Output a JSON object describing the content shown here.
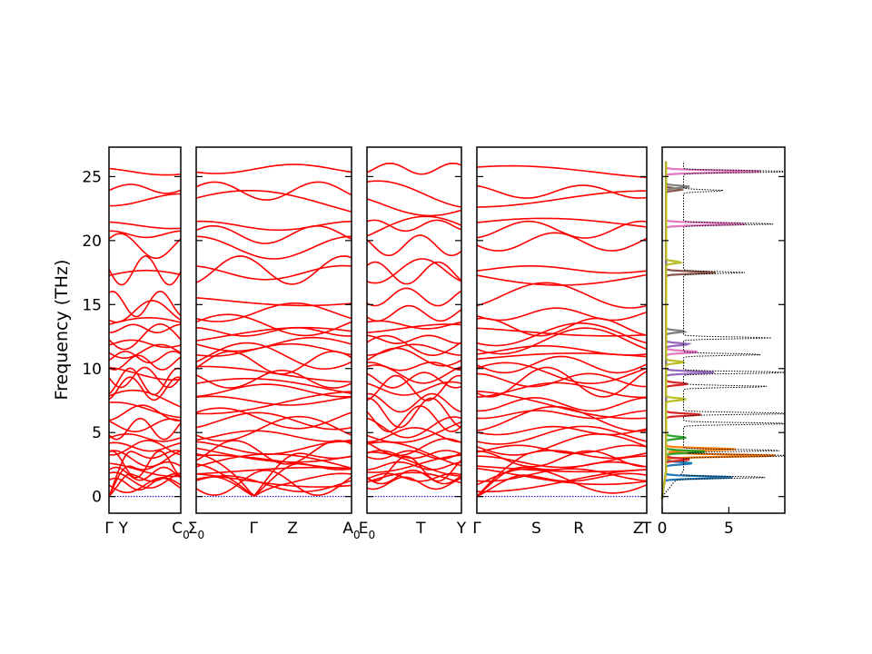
{
  "chart_data": {
    "type": "line",
    "ylabel": "Frequency (THz)",
    "ylim": [
      -1.3,
      27.3
    ],
    "y_ticks": [
      0,
      5,
      10,
      15,
      20,
      25
    ],
    "line_color": "#ff0000",
    "zero_line_color": "#0000cc",
    "panels": [
      {
        "name": "Γ-Y-C0",
        "path": [
          "Γ",
          "Y",
          "C0"
        ],
        "label_positions": [
          0.0,
          0.2,
          1.0
        ],
        "labels": [
          {
            "text": "Γ",
            "sub": ""
          },
          {
            "text": "Y",
            "sub": ""
          },
          {
            "text": "C",
            "sub": "0"
          }
        ]
      },
      {
        "name": "Σ0-Γ-Z-A0",
        "path": [
          "Σ0",
          "Γ",
          "Z",
          "A0"
        ],
        "label_positions": [
          0.0,
          0.37,
          0.62,
          1.0
        ],
        "labels": [
          {
            "text": "Σ",
            "sub": "0"
          },
          {
            "text": "Γ",
            "sub": ""
          },
          {
            "text": "Z",
            "sub": ""
          },
          {
            "text": "A",
            "sub": "0"
          }
        ]
      },
      {
        "name": "E0-T-Y",
        "path": [
          "E0",
          "T",
          "Y"
        ],
        "label_positions": [
          0.0,
          0.57,
          1.0
        ],
        "labels": [
          {
            "text": "E",
            "sub": "0"
          },
          {
            "text": "T",
            "sub": ""
          },
          {
            "text": "Y",
            "sub": ""
          }
        ]
      },
      {
        "name": "Γ-S-R-Z-T",
        "path": [
          "Γ",
          "S",
          "R",
          "Z",
          "T"
        ],
        "label_positions": [
          0.0,
          0.35,
          0.6,
          0.95,
          1.0
        ],
        "labels": [
          {
            "text": "Γ",
            "sub": ""
          },
          {
            "text": "S",
            "sub": ""
          },
          {
            "text": "R",
            "sub": ""
          },
          {
            "text": "Z",
            "sub": ""
          },
          {
            "text": "T",
            "sub": ""
          }
        ]
      }
    ],
    "bands_at_gamma": [
      0,
      0,
      0,
      0.9,
      1.1,
      1.5,
      1.9,
      2.3,
      2.9,
      3.2,
      3.6,
      4.0,
      4.6,
      5.1,
      5.7,
      6.3,
      7.0,
      7.6,
      8.1,
      8.6,
      9.3,
      9.8,
      10.3,
      10.8,
      11.3,
      11.9,
      12.4,
      13.0,
      13.5,
      14.2,
      15.4,
      17.3,
      17.7,
      19.8,
      20.6,
      21.3,
      23.0,
      24.0,
      25.5
    ],
    "dos": {
      "xlim": [
        0,
        9.2
      ],
      "x_ticks": [
        0,
        5
      ],
      "total_peaks": [
        {
          "freq": 1.5,
          "value": 6.8
        },
        {
          "freq": 3.2,
          "value": 9.2
        },
        {
          "freq": 3.6,
          "value": 7.5
        },
        {
          "freq": 5.7,
          "value": 8.5
        },
        {
          "freq": 6.5,
          "value": 9.0
        },
        {
          "freq": 8.6,
          "value": 6.5
        },
        {
          "freq": 9.7,
          "value": 9.2
        },
        {
          "freq": 11.1,
          "value": 6.0
        },
        {
          "freq": 12.4,
          "value": 6.6
        },
        {
          "freq": 17.5,
          "value": 4.6
        },
        {
          "freq": 21.3,
          "value": 7.0
        },
        {
          "freq": 23.9,
          "value": 3.1
        },
        {
          "freq": 25.4,
          "value": 9.0
        }
      ],
      "partials": [
        {
          "color": "#1f77b4",
          "peaks": [
            {
              "freq": 1.5,
              "value": 5.2
            },
            {
              "freq": 2.6,
              "value": 2.0
            }
          ]
        },
        {
          "color": "#ff7f0e",
          "peaks": [
            {
              "freq": 3.2,
              "value": 8.4
            },
            {
              "freq": 3.7,
              "value": 5.2
            }
          ]
        },
        {
          "color": "#2ca02c",
          "peaks": [
            {
              "freq": 3.5,
              "value": 3.0
            },
            {
              "freq": 4.6,
              "value": 1.5
            }
          ]
        },
        {
          "color": "#d62728",
          "peaks": [
            {
              "freq": 2.9,
              "value": 1.8
            },
            {
              "freq": 6.4,
              "value": 2.6
            },
            {
              "freq": 8.8,
              "value": 1.6
            }
          ]
        },
        {
          "color": "#9467bd",
          "peaks": [
            {
              "freq": 9.7,
              "value": 3.6
            },
            {
              "freq": 11.9,
              "value": 1.7
            }
          ]
        },
        {
          "color": "#8c564b",
          "peaks": [
            {
              "freq": 17.5,
              "value": 3.7
            },
            {
              "freq": 24.0,
              "value": 1.2
            }
          ]
        },
        {
          "color": "#e377c2",
          "peaks": [
            {
              "freq": 11.3,
              "value": 2.4
            },
            {
              "freq": 21.3,
              "value": 6.1
            },
            {
              "freq": 25.4,
              "value": 7.3
            }
          ]
        },
        {
          "color": "#7f7f7f",
          "peaks": [
            {
              "freq": 12.9,
              "value": 1.4
            },
            {
              "freq": 24.2,
              "value": 1.8
            }
          ]
        },
        {
          "color": "#bcbd22",
          "peaks": [
            {
              "freq": 7.6,
              "value": 1.5
            },
            {
              "freq": 10.5,
              "value": 1.3
            },
            {
              "freq": 18.3,
              "value": 1.1
            }
          ]
        }
      ]
    }
  }
}
